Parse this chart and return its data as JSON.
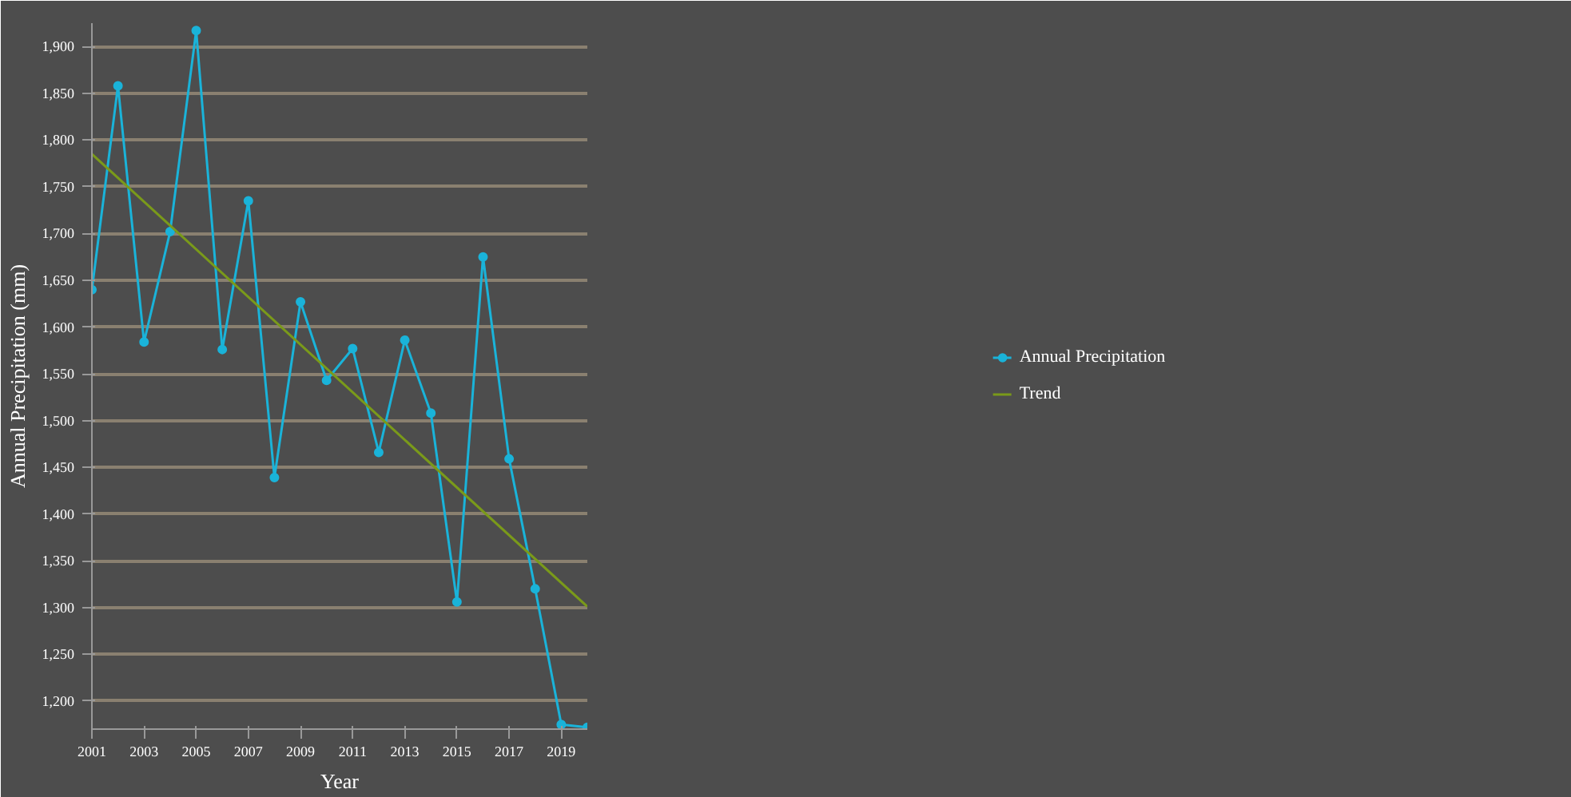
{
  "chart_data": {
    "type": "line",
    "xlabel": "Year",
    "ylabel": "Annual Precipitation (mm)",
    "x": [
      2001,
      2002,
      2003,
      2004,
      2005,
      2006,
      2007,
      2008,
      2009,
      2010,
      2011,
      2012,
      2013,
      2014,
      2015,
      2016,
      2017,
      2018,
      2019,
      2020
    ],
    "series": [
      {
        "name": "Annual Precipitation",
        "color": "#1ab3d9",
        "marker": "circle",
        "values": [
          1640,
          1858,
          1584,
          1702,
          1917,
          1576,
          1735,
          1439,
          1627,
          1543,
          1577,
          1466,
          1586,
          1508,
          1306,
          1675,
          1459,
          1320,
          1175,
          1172
        ]
      },
      {
        "name": "Trend",
        "color": "#7a9a1a",
        "marker": "none",
        "x": [
          2001,
          2020
        ],
        "values": [
          1785,
          1301
        ]
      }
    ],
    "xlim": [
      2001,
      2020
    ],
    "ylim": [
      1170,
      1925
    ],
    "xticks": [
      2001,
      2003,
      2005,
      2007,
      2009,
      2011,
      2013,
      2015,
      2017,
      2019
    ],
    "yticks": [
      {
        "value": 1200,
        "label": "1,200"
      },
      {
        "value": 1250,
        "label": "1,250"
      },
      {
        "value": 1300,
        "label": "1,300"
      },
      {
        "value": 1350,
        "label": "1,350"
      },
      {
        "value": 1400,
        "label": "1,400"
      },
      {
        "value": 1450,
        "label": "1,450"
      },
      {
        "value": 1500,
        "label": "1,500"
      },
      {
        "value": 1550,
        "label": "1,550"
      },
      {
        "value": 1600,
        "label": "1,600"
      },
      {
        "value": 1650,
        "label": "1,650"
      },
      {
        "value": 1700,
        "label": "1,700"
      },
      {
        "value": 1750,
        "label": "1,750"
      },
      {
        "value": 1800,
        "label": "1,800"
      },
      {
        "value": 1850,
        "label": "1,850"
      },
      {
        "value": 1900,
        "label": "1,900"
      }
    ],
    "grid": "y",
    "legend": "right"
  }
}
